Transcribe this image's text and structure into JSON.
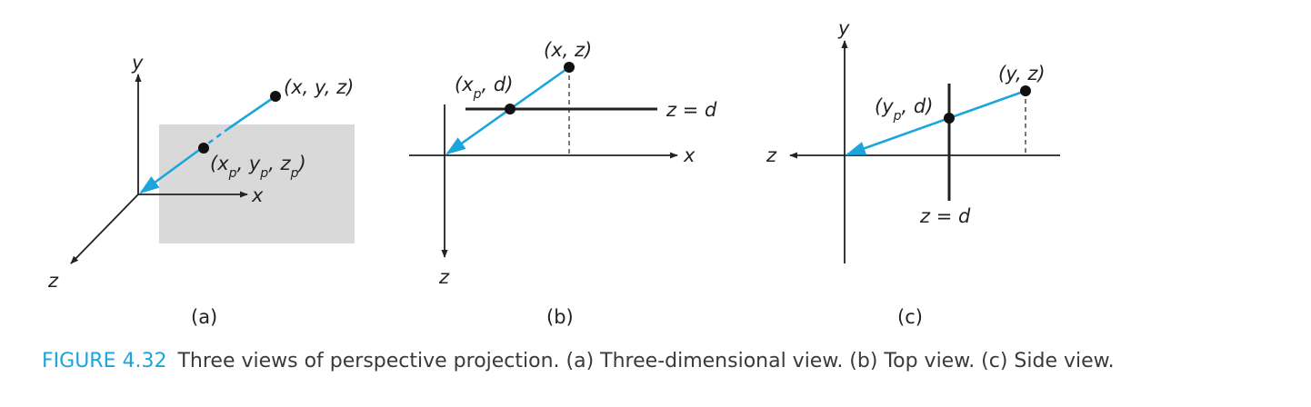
{
  "colors": {
    "accent": "#1aa6dd",
    "ink": "#222222",
    "plane": "#d9d9da"
  },
  "panel_a": {
    "label": "(a)",
    "axis_x": "x",
    "axis_y": "y",
    "axis_z": "z",
    "point": "(x, y, z)",
    "proj_open": "(x",
    "proj_sub1": "p",
    "proj_mid1": ", y",
    "proj_sub2": "p",
    "proj_mid2": ", z",
    "proj_sub3": "p",
    "proj_close": ")"
  },
  "panel_b": {
    "label": "(b)",
    "axis_x": "x",
    "axis_z": "z",
    "point": "(x, z)",
    "proj_open": "(x",
    "proj_sub": "p",
    "proj_close": ", d)",
    "plane_label": "z = d"
  },
  "panel_c": {
    "label": "(c)",
    "axis_y": "y",
    "axis_z": "z",
    "point": "(y, z)",
    "proj_open": "(y",
    "proj_sub": "p",
    "proj_close": ", d)",
    "plane_label": "z = d"
  },
  "caption": {
    "number": "FIGURE 4.32",
    "text": "Three views of perspective projection. (a) Three-dimensional view. (b) Top view. (c) Side view."
  }
}
